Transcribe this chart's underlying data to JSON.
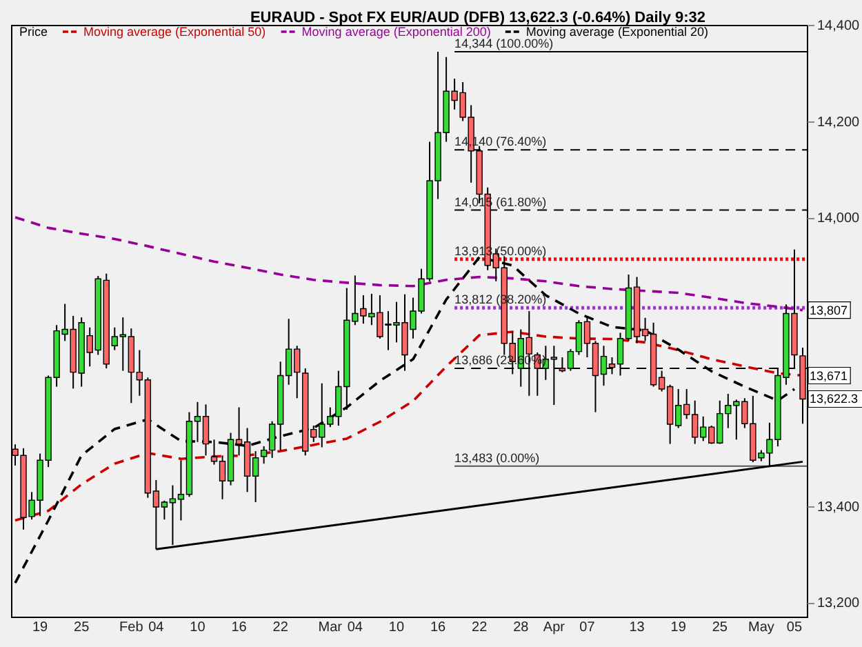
{
  "chart_data": {
    "type": "candlestick",
    "title": "EURAUD - Spot FX EUR/AUD (DFB)   13,622.3 (-0.64%)   Daily 9:32",
    "legend_title": "Price",
    "legend": "top left",
    "categories": [
      null,
      null,
      null,
      "19",
      null,
      null,
      null,
      null,
      "25",
      null,
      null,
      null,
      null,
      null,
      "Feb",
      null,
      null,
      "04",
      null,
      null,
      null,
      null,
      "10",
      null,
      null,
      null,
      null,
      "16",
      null,
      null,
      null,
      null,
      "22",
      null,
      null,
      null,
      null,
      null,
      "Mar",
      null,
      null,
      "04",
      null,
      null,
      null,
      null,
      "10",
      null,
      null,
      null,
      null,
      "16",
      null,
      null,
      null,
      null,
      "22",
      null,
      null,
      null,
      null,
      "28",
      null,
      null,
      null,
      "Apr",
      null,
      null,
      null,
      "07",
      null,
      null,
      null,
      null,
      null,
      "13",
      null,
      null,
      null,
      null,
      "19",
      null,
      null,
      null,
      null,
      "25",
      null,
      null,
      null,
      null,
      "May",
      null,
      null,
      null,
      "05",
      null
    ],
    "ohlc": [
      [
        13518,
        13528,
        13484,
        13505
      ],
      [
        13505,
        13520,
        13351,
        13376
      ],
      [
        13378,
        13429,
        13372,
        13412
      ],
      [
        13412,
        13509,
        13379,
        13495
      ],
      [
        13495,
        13671,
        13481,
        13667
      ],
      [
        13667,
        13776,
        13648,
        13764
      ],
      [
        13757,
        13820,
        13743,
        13767
      ],
      [
        13767,
        13795,
        13644,
        13678
      ],
      [
        13676,
        13792,
        13648,
        13781
      ],
      [
        13754,
        13771,
        13690,
        13719
      ],
      [
        13724,
        13878,
        13714,
        13872
      ],
      [
        13869,
        13883,
        13686,
        13695
      ],
      [
        13733,
        13771,
        13724,
        13752
      ],
      [
        13752,
        13792,
        13681,
        13756
      ],
      [
        13752,
        13769,
        13614,
        13678
      ],
      [
        13678,
        13724,
        13629,
        13662
      ],
      [
        13662,
        13667,
        13417,
        13427
      ],
      [
        13431,
        13454,
        13310,
        13398
      ],
      [
        13398,
        13411,
        13372,
        13408
      ],
      [
        13407,
        13443,
        13319,
        13415
      ],
      [
        13414,
        13495,
        13370,
        13424
      ],
      [
        13424,
        13595,
        13419,
        13576
      ],
      [
        13576,
        13616,
        13533,
        13586
      ],
      [
        13586,
        13611,
        13505,
        13529
      ],
      [
        13502,
        13538,
        13486,
        13493
      ],
      [
        13493,
        13505,
        13414,
        13452
      ],
      [
        13452,
        13552,
        13443,
        13538
      ],
      [
        13538,
        13605,
        13505,
        13529
      ],
      [
        13533,
        13562,
        13429,
        13462
      ],
      [
        13462,
        13514,
        13408,
        13500
      ],
      [
        13503,
        13524,
        13488,
        13516
      ],
      [
        13516,
        13576,
        13500,
        13570
      ],
      [
        13570,
        13700,
        13516,
        13671
      ],
      [
        13671,
        13789,
        13652,
        13726
      ],
      [
        13726,
        13733,
        13624,
        13678
      ],
      [
        13676,
        13686,
        13505,
        13514
      ],
      [
        13559,
        13567,
        13533,
        13543
      ],
      [
        13543,
        13655,
        13522,
        13570
      ],
      [
        13570,
        13605,
        13564,
        13586
      ],
      [
        13586,
        13681,
        13567,
        13648
      ],
      [
        13648,
        13853,
        13600,
        13786
      ],
      [
        13784,
        13879,
        13776,
        13800
      ],
      [
        13810,
        13838,
        13779,
        13795
      ],
      [
        13793,
        13841,
        13776,
        13800
      ],
      [
        13802,
        13838,
        13748,
        13752
      ],
      [
        13776,
        13805,
        13724,
        13778
      ],
      [
        13776,
        13824,
        13740,
        13781
      ],
      [
        13781,
        13840,
        13681,
        13714
      ],
      [
        13767,
        13833,
        13748,
        13805
      ],
      [
        13805,
        13893,
        13800,
        13872
      ],
      [
        13872,
        14157,
        13867,
        14076
      ],
      [
        14076,
        14344,
        14038,
        14176
      ],
      [
        14176,
        14333,
        14157,
        14262
      ],
      [
        14262,
        14288,
        14224,
        14243
      ],
      [
        14259,
        14281,
        14200,
        14208
      ],
      [
        14208,
        14233,
        14072,
        14138
      ],
      [
        14138,
        14148,
        14029,
        14048
      ],
      [
        14048,
        14062,
        13890,
        13900
      ],
      [
        13924,
        13935,
        13867,
        13895
      ],
      [
        13895,
        13919,
        13714,
        13738
      ],
      [
        13738,
        13762,
        13674,
        13700
      ],
      [
        13686,
        13767,
        13648,
        13748
      ],
      [
        13750,
        13805,
        13629,
        13716
      ],
      [
        13714,
        13719,
        13629,
        13686
      ],
      [
        13686,
        13733,
        13662,
        13705
      ],
      [
        13705,
        13733,
        13610,
        13709
      ],
      [
        13686,
        13709,
        13678,
        13681
      ],
      [
        13686,
        13726,
        13681,
        13721
      ],
      [
        13721,
        13786,
        13714,
        13781
      ],
      [
        13783,
        13795,
        13709,
        13738
      ],
      [
        13738,
        13743,
        13595,
        13671
      ],
      [
        13674,
        13733,
        13650,
        13711
      ],
      [
        13695,
        13709,
        13674,
        13688
      ],
      [
        13695,
        13760,
        13671,
        13748
      ],
      [
        13748,
        13881,
        13743,
        13853
      ],
      [
        13855,
        13876,
        13738,
        13752
      ],
      [
        13767,
        13791,
        13743,
        13754
      ],
      [
        13757,
        13781,
        13648,
        13652
      ],
      [
        13667,
        13681,
        13638,
        13643
      ],
      [
        13648,
        13652,
        13529,
        13570
      ],
      [
        13567,
        13643,
        13562,
        13609
      ],
      [
        13611,
        13643,
        13581,
        13590
      ],
      [
        13590,
        13619,
        13529,
        13543
      ],
      [
        13543,
        13586,
        13535,
        13564
      ],
      [
        13564,
        13567,
        13529,
        13531
      ],
      [
        13531,
        13619,
        13529,
        13592
      ],
      [
        13592,
        13633,
        13562,
        13609
      ],
      [
        13609,
        13621,
        13538,
        13617
      ],
      [
        13617,
        13624,
        13562,
        13571
      ],
      [
        13571,
        13629,
        13491,
        13495
      ],
      [
        13500,
        13516,
        13493,
        13510
      ],
      [
        13510,
        13573,
        13481,
        13538
      ],
      [
        13538,
        13686,
        13524,
        13671
      ],
      [
        13667,
        13819,
        13652,
        13800
      ],
      [
        13800,
        13933,
        13686,
        13714
      ],
      [
        13712,
        13729,
        13571,
        13622.3
      ]
    ],
    "series": [
      {
        "type": "line",
        "name": "Moving average (Exponential 50)",
        "color": "#cc0000",
        "line_style": "dashed",
        "values": [
          13370,
          null,
          null,
          null,
          13390,
          null,
          null,
          null,
          13445,
          null,
          null,
          null,
          13488,
          null,
          null,
          null,
          13510,
          null,
          null,
          null,
          13498,
          null,
          null,
          null,
          13503,
          null,
          null,
          null,
          13505,
          null,
          null,
          null,
          13514,
          null,
          null,
          null,
          13527,
          null,
          null,
          null,
          13540,
          null,
          null,
          null,
          13575,
          null,
          null,
          null,
          13618,
          null,
          null,
          null,
          13690,
          null,
          null,
          null,
          13755,
          null,
          null,
          null,
          13762,
          null,
          null,
          null,
          13752,
          null,
          null,
          null,
          13748,
          null,
          null,
          null,
          13747,
          null,
          null,
          null,
          13740,
          null,
          null,
          null,
          13724,
          null,
          null,
          null,
          13705,
          null,
          null,
          null,
          13690,
          null,
          null,
          null,
          13676,
          null,
          null,
          13671
        ]
      },
      {
        "type": "line",
        "name": "Moving average (Exponential 200)",
        "color": "#990099",
        "line_style": "dashed",
        "values": [
          14000,
          null,
          null,
          null,
          13978,
          null,
          null,
          null,
          13966,
          null,
          null,
          null,
          13955,
          null,
          null,
          null,
          13940,
          null,
          null,
          null,
          13924,
          null,
          null,
          null,
          13908,
          null,
          null,
          null,
          13895,
          null,
          null,
          null,
          13881,
          null,
          null,
          null,
          13870,
          null,
          null,
          null,
          13864,
          null,
          null,
          null,
          13859,
          null,
          null,
          null,
          13857,
          null,
          null,
          null,
          13870,
          null,
          null,
          null,
          13876,
          null,
          null,
          null,
          13873,
          null,
          null,
          null,
          13867,
          null,
          null,
          null,
          13857,
          null,
          null,
          null,
          13851,
          null,
          null,
          null,
          13847,
          null,
          null,
          null,
          13843,
          null,
          null,
          null,
          13833,
          null,
          null,
          null,
          13822,
          null,
          null,
          null,
          13814,
          null,
          null,
          13807
        ]
      },
      {
        "type": "line",
        "name": "Moving average (Exponential 20)",
        "color": "#000000",
        "line_style": "dashed",
        "values": [
          13240,
          null,
          null,
          null,
          13370,
          null,
          null,
          null,
          13505,
          null,
          null,
          null,
          13560,
          null,
          null,
          null,
          13580,
          null,
          null,
          null,
          13535,
          null,
          null,
          null,
          13533,
          null,
          null,
          null,
          13525,
          null,
          null,
          null,
          13545,
          null,
          null,
          null,
          13562,
          null,
          null,
          null,
          13605,
          null,
          null,
          null,
          13660,
          null,
          null,
          null,
          13705,
          null,
          null,
          null,
          13829,
          null,
          null,
          null,
          13917,
          null,
          null,
          null,
          13900,
          null,
          null,
          null,
          13838,
          null,
          null,
          null,
          13800,
          null,
          null,
          null,
          13772,
          null,
          null,
          null,
          13765,
          null,
          null,
          null,
          13725,
          null,
          null,
          null,
          13680,
          null,
          null,
          null,
          13648,
          null,
          null,
          null,
          13619,
          null,
          13643,
          null
        ]
      },
      {
        "type": "line",
        "color": "#000000",
        "line_style": "solid",
        "values": [
          null,
          null,
          null,
          null,
          null,
          null,
          null,
          null,
          null,
          null,
          null,
          null,
          null,
          null,
          null,
          null,
          null,
          13310,
          null,
          null,
          null,
          null,
          null,
          null,
          null,
          null,
          null,
          null,
          null,
          null,
          null,
          null,
          null,
          null,
          null,
          null,
          null,
          null,
          null,
          null,
          null,
          null,
          null,
          null,
          null,
          null,
          null,
          null,
          null,
          null,
          null,
          null,
          null,
          null,
          null,
          null,
          null,
          null,
          null,
          null,
          null,
          null,
          null,
          null,
          null,
          null,
          null,
          null,
          null,
          null,
          null,
          null,
          null,
          null,
          null,
          null,
          null,
          null,
          null,
          null,
          null,
          null,
          null,
          null,
          null,
          null,
          null,
          null,
          null,
          null,
          null,
          null,
          null,
          null,
          null,
          13492
        ]
      }
    ],
    "ylim": [
      13170,
      14400
    ],
    "yticks": [
      {
        "value": 13200,
        "label": "13,200"
      },
      {
        "value": 13400,
        "label": "13,400"
      },
      {
        "value": 14000,
        "label": "14,000"
      },
      {
        "value": 14200,
        "label": "14,200"
      },
      {
        "value": 14400,
        "label": "14,400"
      }
    ],
    "ref_lines": [
      {
        "axis": "y",
        "value": 14344,
        "label": "14,344 (100.00%)",
        "color": "#000000",
        "line_style": "solid"
      },
      {
        "axis": "y",
        "value": 14140,
        "label": "14,140 (76.40%)",
        "color": "#000000",
        "line_style": "dashed"
      },
      {
        "axis": "y",
        "value": 14015,
        "label": "14,015 (61.80%)",
        "color": "#000000",
        "line_style": "dashed"
      },
      {
        "axis": "y",
        "value": 13913,
        "label": "13,913 (50.00%)",
        "color": "#ff0000",
        "line_style": "dotted"
      },
      {
        "axis": "y",
        "value": 13812,
        "label": "13,812 (38.20%)",
        "color": "#9933cc",
        "line_style": "dotted"
      },
      {
        "axis": "y",
        "value": 13686,
        "label": "13,686 (23.60%)",
        "color": "#000000",
        "line_style": "dashed"
      },
      {
        "axis": "y",
        "value": 13483,
        "label": "13,483 (0.00%)",
        "color": "#555555",
        "line_style": "solid"
      }
    ],
    "annotations": [
      {
        "text": "13,807",
        "y": 13807
      },
      {
        "text": "13,671",
        "y": 13671
      },
      {
        "text": "13,622.3",
        "y": 13622.3
      }
    ]
  }
}
